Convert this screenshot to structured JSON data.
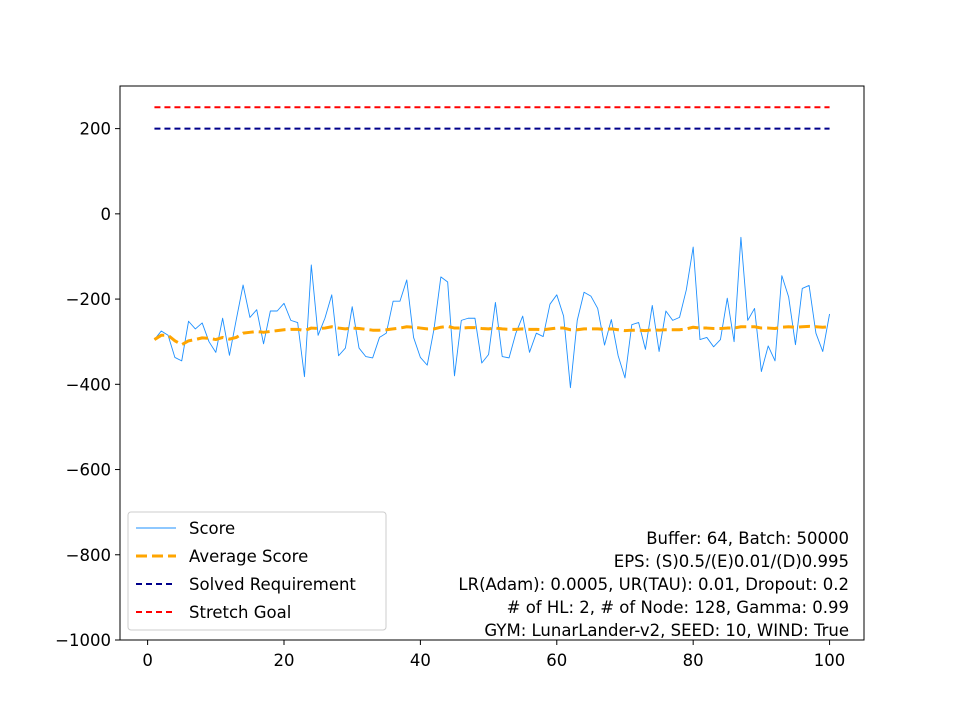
{
  "chart_data": {
    "type": "line",
    "title": "",
    "xlabel": "",
    "ylabel": "",
    "xlim": [
      -4.05,
      105.05
    ],
    "ylim": [
      -1000,
      300
    ],
    "xticks": [
      0,
      20,
      40,
      60,
      80,
      100
    ],
    "yticks": [
      -1000,
      -800,
      -600,
      -400,
      -200,
      0,
      200
    ],
    "xtick_labels": [
      "0",
      "20",
      "40",
      "60",
      "80",
      "100"
    ],
    "ytick_labels": [
      "−1000",
      "−800",
      "−600",
      "−400",
      "−200",
      "0",
      "200"
    ],
    "grid": false,
    "legend_position": "lower-left",
    "series": [
      {
        "name": "Score",
        "color": "#1e90ff",
        "style": "solid",
        "x": [
          1,
          2,
          3,
          4,
          5,
          6,
          7,
          8,
          9,
          10,
          11,
          12,
          13,
          14,
          15,
          16,
          17,
          18,
          19,
          20,
          21,
          22,
          23,
          24,
          25,
          26,
          27,
          28,
          29,
          30,
          31,
          32,
          33,
          34,
          35,
          36,
          37,
          38,
          39,
          40,
          41,
          42,
          43,
          44,
          45,
          46,
          47,
          48,
          49,
          50,
          51,
          52,
          53,
          54,
          55,
          56,
          57,
          58,
          59,
          60,
          61,
          62,
          63,
          64,
          65,
          66,
          67,
          68,
          69,
          70,
          71,
          72,
          73,
          74,
          75,
          76,
          77,
          78,
          79,
          80,
          81,
          82,
          83,
          84,
          85,
          86,
          87,
          88,
          89,
          90,
          91,
          92,
          93,
          94,
          95,
          96,
          97,
          98,
          99,
          100
        ],
        "values": [
          -295,
          -275,
          -285,
          -337,
          -345,
          -252,
          -270,
          -256,
          -300,
          -325,
          -245,
          -332,
          -248,
          -167,
          -243,
          -225,
          -305,
          -228,
          -228,
          -210,
          -250,
          -255,
          -382,
          -120,
          -285,
          -245,
          -190,
          -333,
          -315,
          -218,
          -315,
          -335,
          -338,
          -290,
          -280,
          -205,
          -205,
          -155,
          -290,
          -337,
          -355,
          -270,
          -148,
          -160,
          -380,
          -250,
          -245,
          -245,
          -350,
          -330,
          -208,
          -335,
          -338,
          -280,
          -240,
          -325,
          -280,
          -288,
          -212,
          -190,
          -240,
          -408,
          -250,
          -184,
          -193,
          -222,
          -308,
          -248,
          -333,
          -385,
          -260,
          -255,
          -318,
          -215,
          -323,
          -228,
          -250,
          -243,
          -178,
          -78,
          -295,
          -290,
          -312,
          -295,
          -198,
          -300,
          -55,
          -250,
          -222,
          -370,
          -310,
          -345,
          -145,
          -195,
          -307,
          -175,
          -168,
          -280,
          -323,
          -235
        ]
      },
      {
        "name": "Average Score",
        "color": "#ffa500",
        "style": "dashed",
        "x": [
          1,
          2,
          3,
          4,
          5,
          6,
          7,
          8,
          9,
          10,
          11,
          12,
          13,
          14,
          15,
          16,
          17,
          18,
          19,
          20,
          21,
          22,
          23,
          24,
          25,
          26,
          27,
          28,
          29,
          30,
          31,
          32,
          33,
          34,
          35,
          36,
          37,
          38,
          39,
          40,
          41,
          42,
          43,
          44,
          45,
          46,
          47,
          48,
          49,
          50,
          51,
          52,
          53,
          54,
          55,
          56,
          57,
          58,
          59,
          60,
          61,
          62,
          63,
          64,
          65,
          66,
          67,
          68,
          69,
          70,
          71,
          72,
          73,
          74,
          75,
          76,
          77,
          78,
          79,
          80,
          81,
          82,
          83,
          84,
          85,
          86,
          87,
          88,
          89,
          90,
          91,
          92,
          93,
          94,
          95,
          96,
          97,
          98,
          99,
          100
        ],
        "values": [
          -295,
          -285,
          -285,
          -298,
          -307,
          -298,
          -295,
          -291,
          -292,
          -295,
          -290,
          -294,
          -290,
          -280,
          -278,
          -276,
          -278,
          -276,
          -274,
          -272,
          -271,
          -271,
          -274,
          -268,
          -269,
          -268,
          -265,
          -268,
          -270,
          -268,
          -269,
          -271,
          -273,
          -273,
          -272,
          -270,
          -268,
          -265,
          -266,
          -268,
          -270,
          -270,
          -266,
          -264,
          -268,
          -268,
          -267,
          -267,
          -269,
          -270,
          -268,
          -270,
          -271,
          -271,
          -270,
          -271,
          -271,
          -272,
          -270,
          -268,
          -268,
          -272,
          -272,
          -270,
          -270,
          -270,
          -271,
          -270,
          -272,
          -274,
          -273,
          -273,
          -274,
          -272,
          -273,
          -272,
          -272,
          -272,
          -270,
          -266,
          -268,
          -268,
          -269,
          -269,
          -268,
          -268,
          -265,
          -265,
          -265,
          -268,
          -268,
          -269,
          -266,
          -265,
          -266,
          -265,
          -264,
          -265,
          -266,
          -265
        ]
      },
      {
        "name": "Solved Requirement",
        "color": "#00008b",
        "style": "dashed",
        "x": [
          1,
          100
        ],
        "values": [
          200,
          200
        ]
      },
      {
        "name": "Stretch Goal",
        "color": "#ff0000",
        "style": "dashed",
        "x": [
          1,
          100
        ],
        "values": [
          250,
          250
        ]
      }
    ],
    "annotation_lines": [
      "Buffer: 64, Batch: 50000",
      "EPS: (S)0.5/(E)0.01/(D)0.995",
      "LR(Adam): 0.0005, UR(TAU): 0.01, Dropout: 0.2",
      "# of HL: 2, # of Node: 128, Gamma: 0.99",
      "GYM: LunarLander-v2, SEED: 10, WIND: True"
    ]
  }
}
